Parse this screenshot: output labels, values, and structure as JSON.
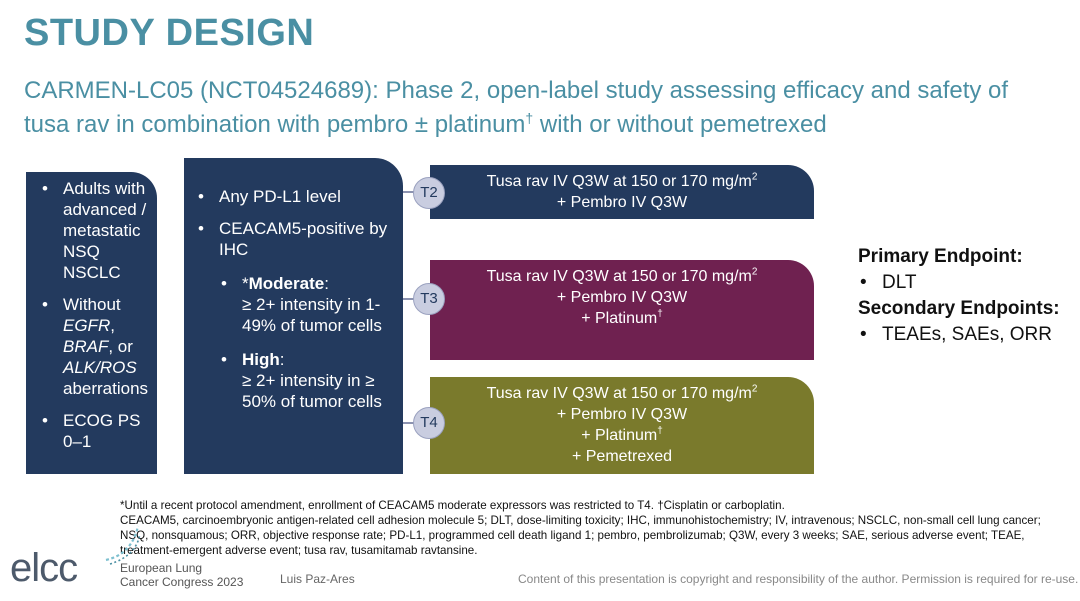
{
  "title": "STUDY DESIGN",
  "subtitle": {
    "before_sup": "CARMEN-LC05 (NCT04524689): Phase 2, open-label study assessing efficacy and safety of tusa rav in combination with pembro ± platinum",
    "sup": "†",
    "after_sup": " with or without pemetrexed"
  },
  "criteria_box": {
    "item1": "Adults with advanced / metastatic NSQ NSCLC",
    "item2": {
      "prefix": "Without ",
      "egfr": "EGFR",
      "comma": ", ",
      "braf": "BRAF",
      "or": ", or ",
      "alk": "ALK/ROS",
      "suffix": " aberrations"
    },
    "item3": "ECOG PS 0–1"
  },
  "biomarker_box": {
    "item1": "Any PD-L1 level",
    "item2": "CEACAM5-positive by IHC",
    "moderate": {
      "star": "*",
      "label": "Moderate",
      "colon": ":",
      "text": "≥ 2+ intensity in 1-49% of tumor cells"
    },
    "high": {
      "label": "High",
      "colon": ":",
      "text": "≥ 2+ intensity in ≥ 50% of tumor cells"
    }
  },
  "arms": {
    "t2": {
      "badge": "T2",
      "line1": "Tusa rav IV Q3W at 150 or 170 mg/m",
      "line1_sup": "2",
      "line2": "+ Pembro IV Q3W"
    },
    "t3": {
      "badge": "T3",
      "line1": "Tusa rav IV Q3W at 150 or 170 mg/m",
      "line1_sup": "2",
      "line2": "+ Pembro IV Q3W",
      "line3": "+ Platinum",
      "line3_sup": "†"
    },
    "t4": {
      "badge": "T4",
      "line1": "Tusa rav IV Q3W at 150 or 170 mg/m",
      "line1_sup": "2",
      "line2": "+ Pembro IV Q3W",
      "line3": "+ Platinum",
      "line3_sup": "†",
      "line4": "+ Pemetrexed"
    }
  },
  "endpoints": {
    "primary_label": "Primary Endpoint:",
    "primary_items": [
      "DLT"
    ],
    "secondary_label": "Secondary Endpoints:",
    "secondary_items": [
      "TEAEs, SAEs, ORR"
    ]
  },
  "footnote": {
    "line1": "*Until a recent protocol amendment, enrollment of CEACAM5 moderate expressors was restricted to T4. †Cisplatin or carboplatin.",
    "line2": "CEACAM5, carcinoembryonic antigen-related cell adhesion molecule 5; DLT, dose-limiting toxicity; IHC, immunohistochemistry; IV, intravenous; NSCLC, non-small cell lung cancer; NSQ, nonsquamous; ORR, objective response rate; PD-L1, programmed cell death ligand 1; pembro, pembrolizumab; Q3W, every 3 weeks; SAE, serious adverse event; TEAE, treatment-emergent adverse event; tusa rav, tusamitamab ravtansine."
  },
  "footer": {
    "logo": "elcc",
    "congress_line1": "European Lung",
    "congress_line2": "Cancer Congress 2023",
    "author": "Luis Paz-Ares",
    "copyright": "Content of this presentation is copyright and responsibility of the author. Permission is required for re-use."
  },
  "colors": {
    "title": "#4a8fa3",
    "navy": "#233a5e",
    "t3_purple": "#6f2150",
    "t4_olive": "#7a7a2c",
    "badge": "#c9cde0"
  }
}
